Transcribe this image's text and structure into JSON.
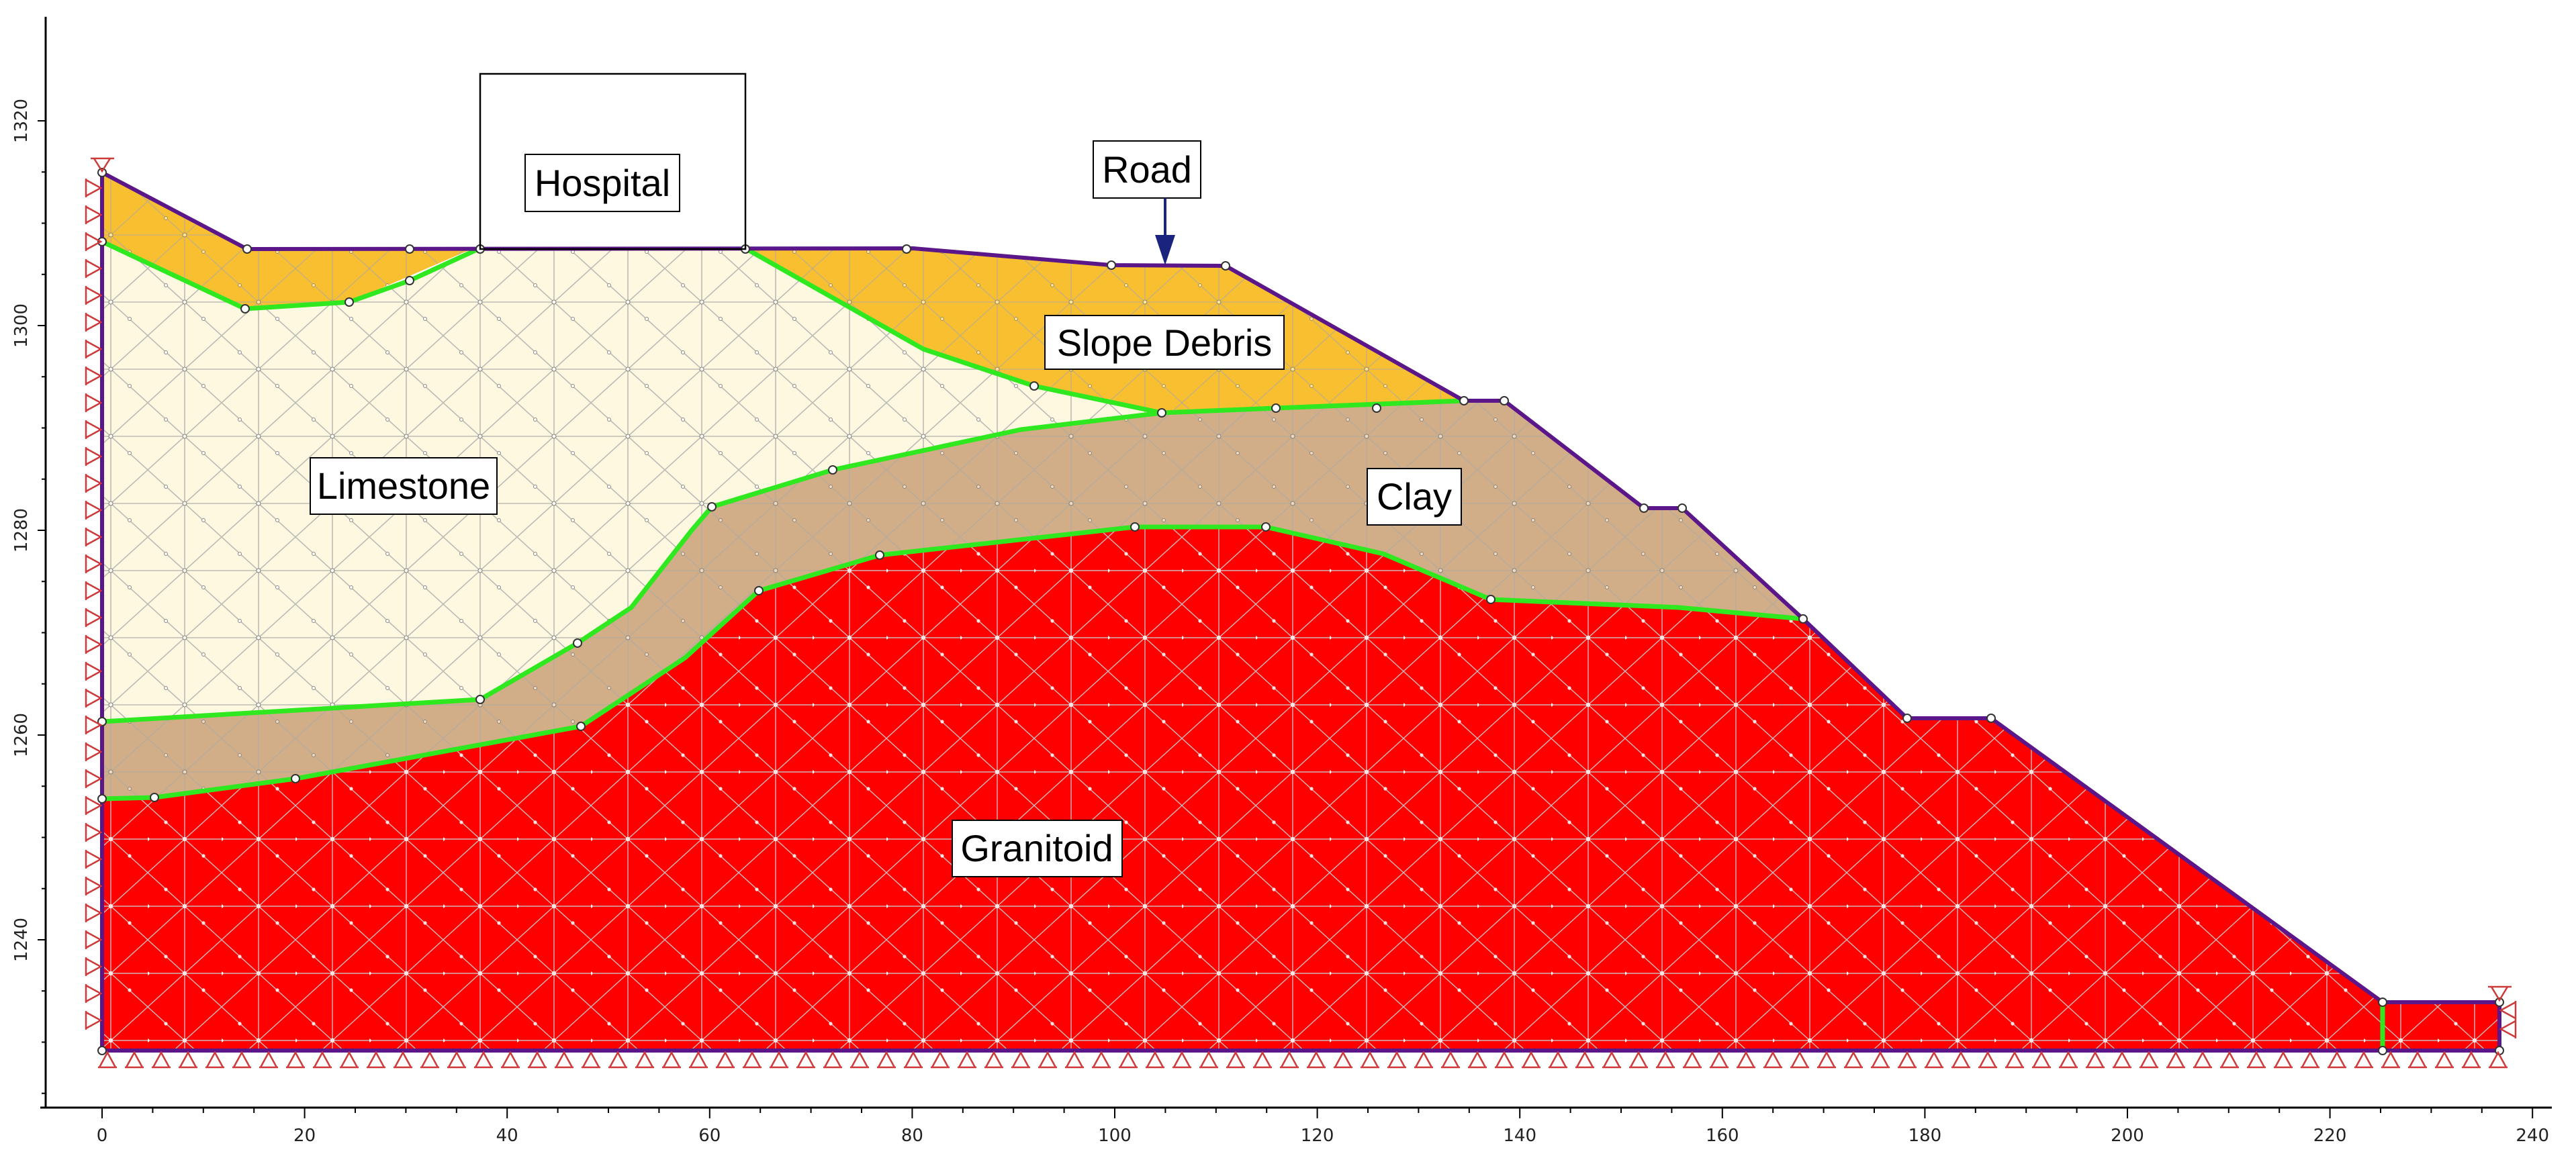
{
  "diagram": {
    "labels": {
      "hospital": "Hospital",
      "road": "Road",
      "slope_debris": "Slope Debris",
      "limestone": "Limestone",
      "clay": "Clay",
      "granitoid": "Granitoid"
    },
    "x_ticks": [
      "0",
      "20",
      "40",
      "60",
      "80",
      "100",
      "120",
      "140",
      "160",
      "180",
      "200",
      "220",
      "240"
    ],
    "y_ticks": [
      "1240",
      "1260",
      "1280",
      "1300",
      "1320"
    ],
    "colors": {
      "slope_debris": "#f8bf30",
      "limestone": "#fdf8df",
      "clay": "#d1ae87",
      "granitoid": "#ff0000",
      "boundary": "#2fe81f",
      "outline": "#5b1689",
      "support": "#cc3a3a",
      "load_arrow": "#1a237e",
      "mesh": "#9e9e9e",
      "axis": "#000000"
    },
    "icons": {
      "fixed_support": "triangle-support-icon",
      "road_load": "down-arrow-load-icon"
    }
  }
}
